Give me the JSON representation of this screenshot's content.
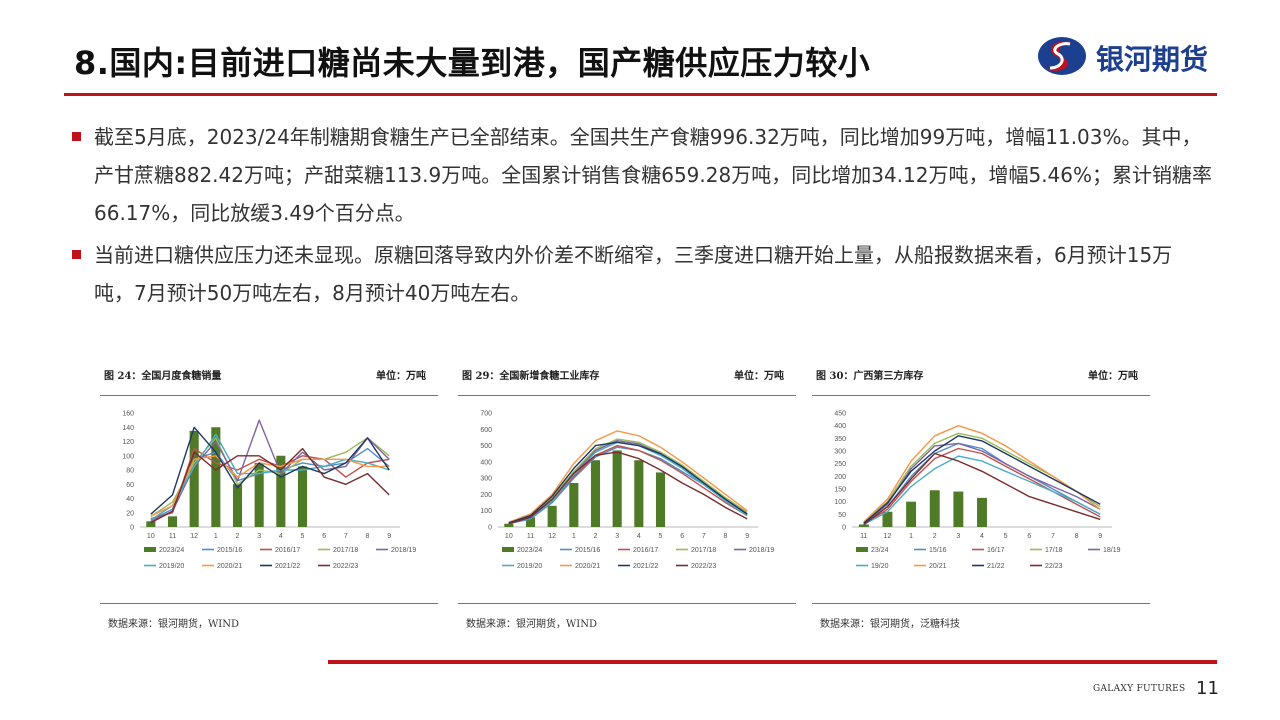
{
  "title": "8.国内:目前进口糖尚未大量到港，国产糖供应压力较小",
  "logo_text": "银河期货",
  "bullets": [
    "截至5月底，2023/24年制糖期食糖生产已全部结束。全国共生产食糖996.32万吨，同比增加99万吨，增幅11.03%。其中，产甘蔗糖882.42万吨；产甜菜糖113.9万吨。全国累计销售食糖659.28万吨，同比增加34.12万吨，增幅5.46%；累计销糖率66.17%，同比放缓3.49个百分点。",
    "当前进口糖供应压力还未显现。原糖回落导致内外价差不断缩窄，三季度进口糖开始上量，从船报数据来看，6月预计15万吨，7月预计50万吨左右，8月预计40万吨左右。"
  ],
  "colors": {
    "accent": "#c0121b",
    "brand": "#1d3f8f",
    "bar": "#4f7a28",
    "s1": "#4f8fc9",
    "s2": "#c0504d",
    "s3": "#9bbb59",
    "s4": "#8064a2",
    "s5": "#4bacc6",
    "s6": "#f79646",
    "s7": "#1f3864",
    "s8": "#7b2c2c"
  },
  "footer": {
    "brand": "GALAXY FUTURES",
    "page": "11"
  },
  "panels": [
    {
      "title": "图 24：全国月度食糖销量",
      "unit": "单位：万吨",
      "source": "数据来源：银河期货，WIND"
    },
    {
      "title": "图 29：全国新增食糖工业库存",
      "unit": "单位：万吨",
      "source": "数据来源：银河期货，WIND"
    },
    {
      "title": "图 30：广西第三方库存",
      "unit": "单位：万吨",
      "source": "数据来源：银河期货，泛糖科技"
    }
  ],
  "chart_data": [
    {
      "type": "bar",
      "categories": [
        "10",
        "11",
        "12",
        "1",
        "2",
        "3",
        "4",
        "5",
        "6",
        "7",
        "8",
        "9"
      ],
      "ylim": [
        0,
        160
      ],
      "yticks": [
        0,
        20,
        40,
        60,
        80,
        100,
        120,
        140,
        160
      ],
      "grid": false,
      "legend_position": "bottom",
      "series": [
        {
          "name": "2023/24",
          "kind": "bar",
          "values": [
            8,
            15,
            135,
            140,
            60,
            90,
            100,
            85,
            null,
            null,
            null,
            null
          ]
        },
        {
          "name": "2015/16",
          "values": [
            10,
            25,
            95,
            105,
            65,
            75,
            80,
            90,
            85,
            90,
            110,
            85
          ]
        },
        {
          "name": "2016/17",
          "values": [
            12,
            20,
            110,
            90,
            80,
            95,
            85,
            100,
            95,
            70,
            90,
            95
          ]
        },
        {
          "name": "2017/18",
          "values": [
            15,
            35,
            90,
            125,
            60,
            80,
            75,
            95,
            95,
            105,
            125,
            100
          ]
        },
        {
          "name": "2018/19",
          "values": [
            8,
            22,
            85,
            120,
            65,
            150,
            75,
            105,
            80,
            85,
            125,
            95
          ]
        },
        {
          "name": "2019/20",
          "values": [
            10,
            30,
            85,
            130,
            75,
            75,
            80,
            80,
            85,
            95,
            90,
            80
          ]
        },
        {
          "name": "2020/21",
          "values": [
            15,
            30,
            95,
            100,
            70,
            90,
            85,
            95,
            95,
            95,
            85,
            85
          ]
        },
        {
          "name": "2021/22",
          "values": [
            18,
            45,
            140,
            105,
            55,
            90,
            70,
            85,
            75,
            90,
            125,
            80
          ]
        },
        {
          "name": "2022/23",
          "values": [
            6,
            22,
            105,
            80,
            100,
            100,
            80,
            110,
            70,
            60,
            75,
            45
          ]
        }
      ]
    },
    {
      "type": "bar",
      "categories": [
        "10",
        "11",
        "12",
        "1",
        "2",
        "3",
        "4",
        "5",
        "6",
        "7",
        "8",
        "9"
      ],
      "ylim": [
        0,
        700
      ],
      "yticks": [
        0,
        100,
        200,
        300,
        400,
        500,
        600,
        700
      ],
      "grid": false,
      "legend_position": "bottom",
      "series": [
        {
          "name": "2023/24",
          "kind": "bar",
          "values": [
            20,
            60,
            130,
            270,
            410,
            470,
            410,
            335,
            null,
            null,
            null,
            null
          ]
        },
        {
          "name": "2015/16",
          "values": [
            20,
            50,
            150,
            300,
            430,
            490,
            470,
            420,
            340,
            260,
            170,
            80
          ]
        },
        {
          "name": "2016/17",
          "values": [
            25,
            60,
            160,
            310,
            440,
            500,
            470,
            410,
            330,
            240,
            150,
            70
          ]
        },
        {
          "name": "2017/18",
          "values": [
            30,
            70,
            180,
            340,
            480,
            540,
            520,
            460,
            380,
            280,
            180,
            90
          ]
        },
        {
          "name": "2018/19",
          "values": [
            25,
            65,
            170,
            330,
            470,
            530,
            510,
            450,
            370,
            270,
            170,
            80
          ]
        },
        {
          "name": "2019/20",
          "values": [
            20,
            60,
            160,
            320,
            460,
            520,
            500,
            440,
            360,
            260,
            160,
            70
          ]
        },
        {
          "name": "2020/21",
          "values": [
            30,
            80,
            200,
            390,
            530,
            590,
            560,
            490,
            400,
            300,
            200,
            100
          ]
        },
        {
          "name": "2021/22",
          "values": [
            25,
            70,
            190,
            360,
            500,
            520,
            500,
            450,
            370,
            270,
            170,
            80
          ]
        },
        {
          "name": "2022/23",
          "values": [
            20,
            60,
            170,
            330,
            440,
            460,
            420,
            350,
            270,
            200,
            120,
            50
          ]
        }
      ]
    },
    {
      "type": "bar",
      "categories": [
        "11",
        "12",
        "1",
        "2",
        "3",
        "4",
        "5",
        "6",
        "7",
        "8",
        "9"
      ],
      "ylim": [
        0,
        450
      ],
      "yticks": [
        0,
        50,
        100,
        150,
        200,
        250,
        300,
        350,
        400,
        450
      ],
      "grid": false,
      "legend_position": "bottom",
      "series": [
        {
          "name": "23/24",
          "kind": "bar",
          "values": [
            10,
            60,
            100,
            145,
            140,
            115,
            null,
            null,
            null,
            null,
            null
          ]
        },
        {
          "name": "15/16",
          "values": [
            15,
            80,
            200,
            290,
            330,
            310,
            250,
            200,
            150,
            100,
            50
          ]
        },
        {
          "name": "16/17",
          "values": [
            10,
            70,
            180,
            270,
            310,
            290,
            240,
            190,
            140,
            90,
            40
          ]
        },
        {
          "name": "17/18",
          "values": [
            20,
            100,
            240,
            330,
            370,
            350,
            300,
            250,
            200,
            140,
            80
          ]
        },
        {
          "name": "18/19",
          "values": [
            15,
            90,
            230,
            320,
            330,
            300,
            250,
            200,
            160,
            120,
            70
          ]
        },
        {
          "name": "19/20",
          "values": [
            10,
            60,
            160,
            230,
            280,
            260,
            220,
            180,
            140,
            100,
            50
          ]
        },
        {
          "name": "20/21",
          "values": [
            20,
            110,
            260,
            360,
            400,
            370,
            320,
            260,
            200,
            140,
            70
          ]
        },
        {
          "name": "21/22",
          "values": [
            15,
            95,
            220,
            300,
            360,
            340,
            290,
            240,
            190,
            140,
            90
          ]
        },
        {
          "name": "22/23",
          "values": [
            10,
            80,
            190,
            290,
            260,
            220,
            170,
            120,
            90,
            60,
            30
          ]
        }
      ]
    }
  ]
}
